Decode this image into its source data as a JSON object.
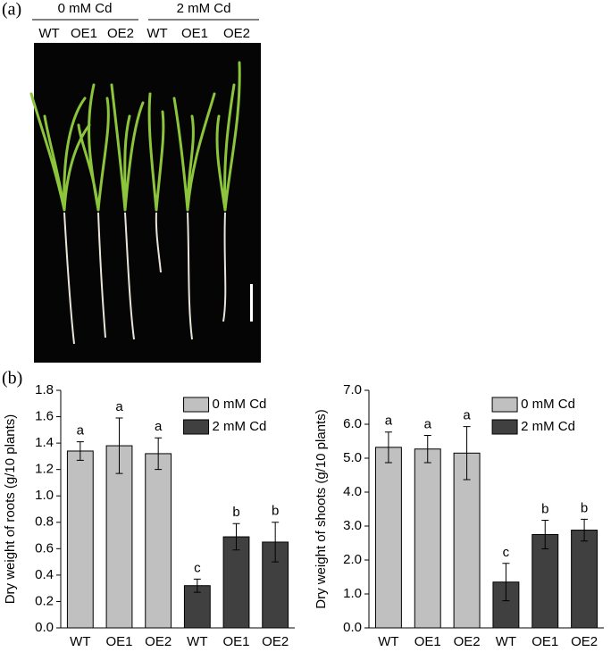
{
  "figure": {
    "panel_a": {
      "label": "(a)",
      "groups": [
        "0 mM Cd",
        "2 mM Cd"
      ],
      "genotypes": [
        "WT",
        "OE1",
        "OE2",
        "WT",
        "OE1",
        "OE2"
      ]
    },
    "panel_b": {
      "label": "(b)"
    }
  },
  "chart_data": [
    {
      "type": "bar",
      "ylabel": "Dry weight of roots (g/10 plants)",
      "categories": [
        "WT",
        "OE1",
        "OE2",
        "WT",
        "OE1",
        "OE2"
      ],
      "series": [
        {
          "name": "0 mM Cd",
          "color": "#c0c0c0",
          "values": [
            1.34,
            1.38,
            1.32,
            null,
            null,
            null
          ],
          "errors": [
            0.07,
            0.21,
            0.12,
            null,
            null,
            null
          ]
        },
        {
          "name": "2 mM Cd",
          "color": "#404040",
          "values": [
            null,
            null,
            null,
            0.32,
            0.69,
            0.65
          ],
          "errors": [
            null,
            null,
            null,
            0.05,
            0.1,
            0.15
          ]
        }
      ],
      "annotations": [
        "a",
        "a",
        "a",
        "c",
        "b",
        "b"
      ],
      "ylim": [
        0,
        1.8
      ],
      "yticks": [
        {
          "value": 0,
          "label": "0.0"
        },
        0.2,
        0.4,
        0.6,
        0.8,
        {
          "value": 1,
          "label": "1.0"
        },
        1.2,
        1.4,
        1.6,
        1.8
      ],
      "legend": "upper right"
    },
    {
      "type": "bar",
      "ylabel": "Dry weight of shoots (g/10 plants)",
      "categories": [
        "WT",
        "OE1",
        "OE2",
        "WT",
        "OE1",
        "OE2"
      ],
      "series": [
        {
          "name": "0 mM Cd",
          "color": "#c0c0c0",
          "values": [
            5.32,
            5.27,
            5.15,
            null,
            null,
            null
          ],
          "errors": [
            0.45,
            0.4,
            0.78,
            null,
            null,
            null
          ]
        },
        {
          "name": "2 mM Cd",
          "color": "#404040",
          "values": [
            null,
            null,
            null,
            1.35,
            2.75,
            2.88
          ],
          "errors": [
            null,
            null,
            null,
            0.55,
            0.42,
            0.32
          ]
        }
      ],
      "annotations": [
        "a",
        "a",
        "a",
        "c",
        "b",
        "b"
      ],
      "ylim": [
        0,
        7
      ],
      "yticks": [
        {
          "value": 0,
          "label": "0.0"
        },
        {
          "value": 1,
          "label": "1.0"
        },
        {
          "value": 2,
          "label": "2.0"
        },
        {
          "value": 3,
          "label": "3.0"
        },
        {
          "value": 4,
          "label": "4.0"
        },
        {
          "value": 5,
          "label": "5.0"
        },
        {
          "value": 6,
          "label": "6.0"
        },
        {
          "value": 7,
          "label": "7.0"
        }
      ],
      "legend": "upper right"
    }
  ]
}
